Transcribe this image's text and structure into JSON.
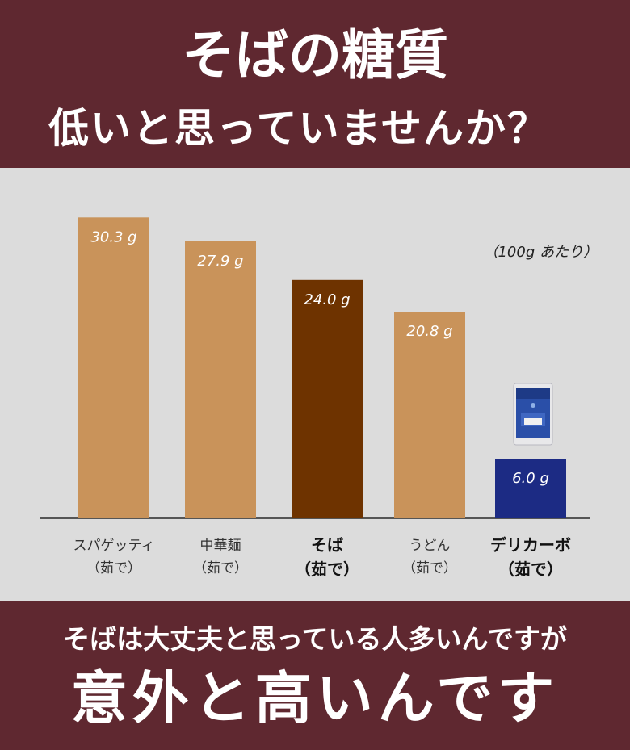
{
  "header": {
    "line1": "そばの糖質",
    "line2": "低いと思っていませんか？"
  },
  "footer": {
    "line1": "そばは大丈夫と思っている人多いんですが",
    "line2": "意外と高いんです"
  },
  "chart_data": {
    "type": "bar",
    "unit_note": "（100g あたり）",
    "ylim": [
      0,
      32
    ],
    "grid": false,
    "categories": [
      [
        "スパゲッティ",
        "（茹で）"
      ],
      [
        "中華麺",
        "（茹で）"
      ],
      [
        "そば",
        "（茹で）"
      ],
      [
        "うどん",
        "（茹で）"
      ],
      [
        "デリカーボ",
        "（茹で）"
      ]
    ],
    "values": [
      30.3,
      27.9,
      24.0,
      20.8,
      6.0
    ],
    "value_labels": [
      "30.3 g",
      "27.9 g",
      "24.0 g",
      "20.8 g",
      "6.0 g"
    ],
    "bar_colors": [
      "#c9935a",
      "#c9935a",
      "#6e3300",
      "#c9935a",
      "#1c2b84"
    ],
    "highlight": [
      false,
      false,
      true,
      false,
      true
    ],
    "colors": {
      "band": "#5f2830",
      "chart_bg": "#dcdcdc",
      "axis": "#555555"
    }
  }
}
